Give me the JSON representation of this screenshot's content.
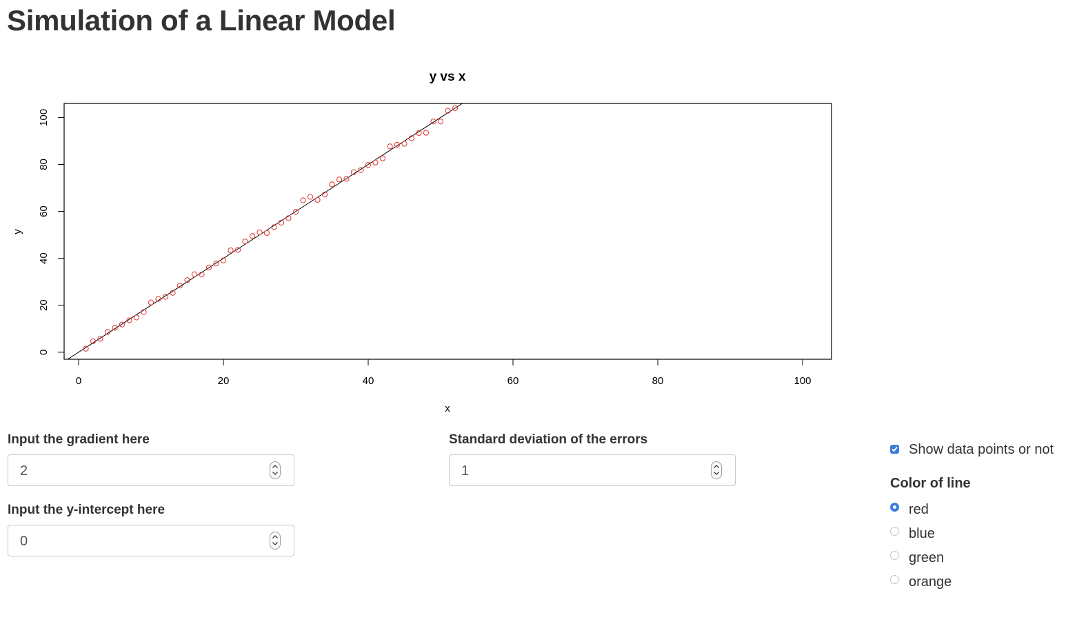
{
  "page": {
    "title": "Simulation of a Linear Model"
  },
  "chart_data": {
    "type": "scatter",
    "title": "y vs x",
    "xlabel": "x",
    "ylabel": "y",
    "xlim": [
      -2,
      104
    ],
    "ylim": [
      -3,
      106
    ],
    "xticks": [
      0,
      20,
      40,
      60,
      80,
      100
    ],
    "yticks": [
      0,
      20,
      40,
      60,
      80,
      100
    ],
    "grid": false,
    "point_color": "#e0413b",
    "line": {
      "slope": 2,
      "intercept": 0,
      "color": "#000000"
    },
    "points": {
      "x": [
        1,
        2,
        3,
        4,
        5,
        6,
        7,
        8,
        9,
        10,
        11,
        12,
        13,
        14,
        15,
        16,
        17,
        18,
        19,
        20,
        21,
        22,
        23,
        24,
        25,
        26,
        27,
        28,
        29,
        30,
        31,
        32,
        33,
        34,
        35,
        36,
        37,
        38,
        39,
        40,
        41,
        42,
        43,
        44,
        45,
        46,
        47,
        48,
        49,
        50,
        51,
        52
      ],
      "y": [
        1.5,
        4.7,
        5.7,
        8.6,
        10.4,
        11.8,
        13.6,
        14.8,
        17.1,
        21.2,
        22.7,
        23.6,
        25.3,
        28.4,
        30.7,
        33.2,
        33.1,
        36.1,
        37.8,
        39.1,
        43.4,
        43.6,
        47.2,
        49.5,
        51.1,
        50.8,
        53.3,
        55.2,
        57.1,
        59.8,
        64.7,
        66.2,
        64.9,
        67.2,
        71.5,
        73.6,
        73.9,
        76.7,
        77.6,
        79.8,
        80.8,
        82.6,
        87.7,
        88.4,
        88.8,
        91.2,
        93.4,
        93.5,
        98.3,
        98.3,
        102.9,
        104.0
      ]
    }
  },
  "inputs": {
    "gradient": {
      "label": "Input the gradient here",
      "value": "2"
    },
    "intercept": {
      "label": "Input the y-intercept here",
      "value": "0"
    },
    "sd": {
      "label": "Standard deviation of the errors",
      "value": "1"
    }
  },
  "options": {
    "show_points_label": "Show data points or not",
    "show_points_checked": true,
    "color_label": "Color of line",
    "colors": [
      "red",
      "blue",
      "green",
      "orange"
    ],
    "selected_color": "red"
  }
}
